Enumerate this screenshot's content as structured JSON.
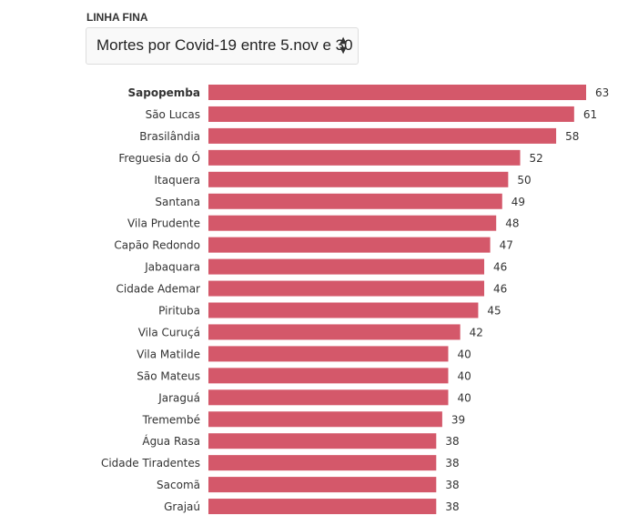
{
  "header": {
    "label": "LINHA FINA",
    "select_value": "Mortes por Covid-19 entre 5.nov e 30"
  },
  "colors": {
    "bar": "#d4586a",
    "text": "#333333"
  },
  "chart_data": {
    "type": "bar",
    "orientation": "horizontal",
    "categories": [
      "Sapopemba",
      "São Lucas",
      "Brasilândia",
      "Freguesia do Ó",
      "Itaquera",
      "Santana",
      "Vila Prudente",
      "Capão Redondo",
      "Jabaquara",
      "Cidade Ademar",
      "Pirituba",
      "Vila Curuçá",
      "Vila Matilde",
      "São Mateus",
      "Jaraguá",
      "Tremembé",
      "Água Rasa",
      "Cidade Tiradentes",
      "Sacomã",
      "Grajaú"
    ],
    "values": [
      63,
      61,
      58,
      52,
      50,
      49,
      48,
      47,
      46,
      46,
      45,
      42,
      40,
      40,
      40,
      39,
      38,
      38,
      38,
      38
    ],
    "xlim": [
      0,
      63
    ]
  }
}
